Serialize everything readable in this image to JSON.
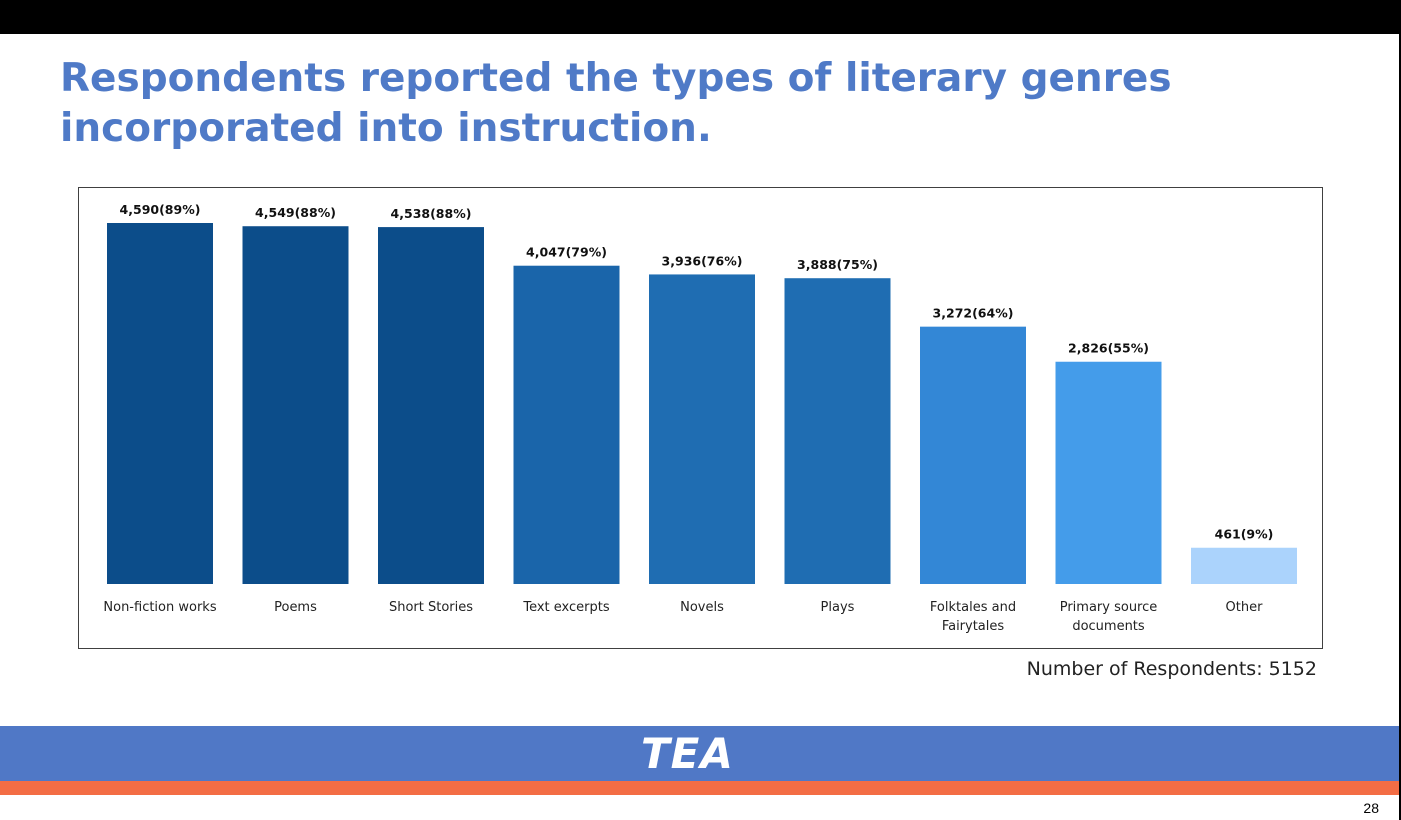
{
  "slide": {
    "title": "Respondents reported the types of literary genres incorporated into instruction.",
    "respondents_note": "Number of Respondents: 5152",
    "logo_text": "TEA",
    "page_number": "28"
  },
  "colors": {
    "title": "#4f7ac7",
    "footer_band": "#5078c6",
    "footer_stripe": "#f36d45"
  },
  "chart_data": {
    "type": "bar",
    "categories": [
      "Non-fiction works",
      "Poems",
      "Short Stories",
      "Text excerpts",
      "Novels",
      "Plays",
      "Folktales and Fairytales",
      "Primary source documents",
      "Other"
    ],
    "category_lines": [
      [
        "Non-fiction works"
      ],
      [
        "Poems"
      ],
      [
        "Short Stories"
      ],
      [
        "Text excerpts"
      ],
      [
        "Novels"
      ],
      [
        "Plays"
      ],
      [
        "Folktales and",
        "Fairytales"
      ],
      [
        "Primary source",
        "documents"
      ],
      [
        "Other"
      ]
    ],
    "values": [
      4590,
      4549,
      4538,
      4047,
      3936,
      3888,
      3272,
      2826,
      461
    ],
    "data_labels": [
      "4,590(89%)",
      "4,549(88%)",
      "4,538(88%)",
      "4,047(79%)",
      "3,936(76%)",
      "3,888(75%)",
      "3,272(64%)",
      "2,826(55%)",
      "461(9%)"
    ],
    "bar_colors": [
      "#0c4d8a",
      "#0c4d8a",
      "#0c4d8a",
      "#1a65aa",
      "#1f6db2",
      "#1f6db2",
      "#3387d6",
      "#449cea",
      "#abd3fc"
    ],
    "ylim": [
      0,
      4590
    ],
    "xlabel": "",
    "ylabel": "",
    "grid": false,
    "legend": false
  }
}
